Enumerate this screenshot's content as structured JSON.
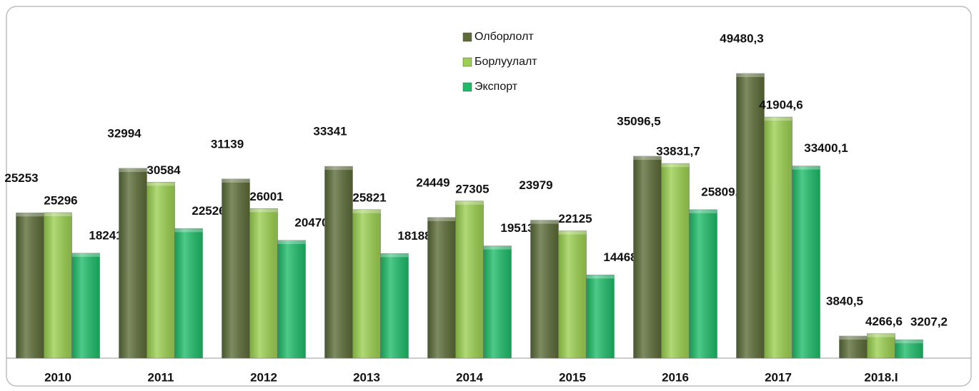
{
  "chart_data": {
    "type": "bar",
    "categories": [
      "2010",
      "2011",
      "2012",
      "2013",
      "2014",
      "2015",
      "2016",
      "2017",
      "2018.I"
    ],
    "series": [
      {
        "name": "Олборлолт",
        "color": "#5b6a36",
        "values": [
          25253,
          32994,
          31139,
          33341,
          24449,
          23979,
          35096.5,
          49480.3,
          3840.5
        ],
        "value_labels": [
          "25253",
          "32994",
          "31139",
          "33341",
          "24449",
          "23979",
          "35096,5",
          "49480,3",
          "3840,5"
        ]
      },
      {
        "name": "Борлуулалт",
        "color": "#9bcf4f",
        "values": [
          25296,
          30584,
          26001,
          25821,
          27305,
          22125,
          33831.7,
          41904.6,
          4266.6
        ],
        "value_labels": [
          "25296",
          "30584",
          "26001",
          "25821",
          "27305",
          "22125",
          "33831,7",
          "41904,6",
          "4266,6"
        ]
      },
      {
        "name": "Экспорт",
        "color": "#1dbb68",
        "values": [
          18241,
          22526,
          20470,
          18188,
          19513,
          14468,
          25809.3,
          33400.1,
          3207.2
        ],
        "value_labels": [
          "18241",
          "22526",
          "20470",
          "18188",
          "19513",
          "14468",
          "25809,3",
          "33400,1",
          "3207,2"
        ]
      }
    ],
    "legend": "top-center"
  }
}
